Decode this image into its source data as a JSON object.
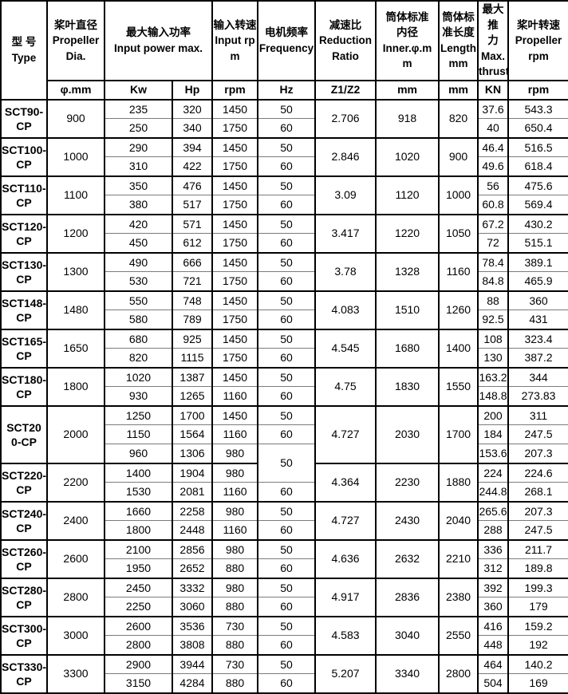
{
  "table": {
    "header": {
      "type": "型 号\nType",
      "groups": [
        {
          "label": "桨叶直径\nPropeller\nDia.",
          "units": [
            "φ.mm"
          ]
        },
        {
          "label": "最大输入功率\nInput power max.",
          "units": [
            "Kw",
            "Hp"
          ]
        },
        {
          "label": "输入转速\nInput rp\nm",
          "units": [
            "rpm"
          ]
        },
        {
          "label": "电机频率\nFrequency",
          "units": [
            "Hz"
          ]
        },
        {
          "label": "减速比\nReduction\nRatio",
          "units": [
            "Z1/Z2"
          ]
        },
        {
          "label": "筒体标准\n内径\nInner.φ.m\nm",
          "units": [
            "mm"
          ]
        },
        {
          "label": "筒体标\n准长度\nLength\nmm",
          "units": [
            "mm"
          ]
        },
        {
          "label": "最大推\n力\nMax.\nthrust",
          "units": [
            "KN"
          ]
        },
        {
          "label": "桨叶转速\nPropeller\nrpm",
          "units": [
            "rpm"
          ]
        }
      ]
    },
    "models": [
      {
        "type": "SCT90-\nCP",
        "dia": "900",
        "ratio": "2.706",
        "inner": "918",
        "length": "820",
        "rows": [
          {
            "kw": "235",
            "hp": "320",
            "rpm": "1450",
            "hz": "50",
            "thrust": "37.6",
            "prop_rpm": "543.3"
          },
          {
            "kw": "250",
            "hp": "340",
            "rpm": "1750",
            "hz": "60",
            "thrust": "40",
            "prop_rpm": "650.4"
          }
        ]
      },
      {
        "type": "SCT100-\nCP",
        "dia": "1000",
        "ratio": "2.846",
        "inner": "1020",
        "length": "900",
        "rows": [
          {
            "kw": "290",
            "hp": "394",
            "rpm": "1450",
            "hz": "50",
            "thrust": "46.4",
            "prop_rpm": "516.5"
          },
          {
            "kw": "310",
            "hp": "422",
            "rpm": "1750",
            "hz": "60",
            "thrust": "49.6",
            "prop_rpm": "618.4"
          }
        ]
      },
      {
        "type": "SCT110-\nCP",
        "dia": "1100",
        "ratio": "3.09",
        "inner": "1120",
        "length": "1000",
        "rows": [
          {
            "kw": "350",
            "hp": "476",
            "rpm": "1450",
            "hz": "50",
            "thrust": "56",
            "prop_rpm": "475.6"
          },
          {
            "kw": "380",
            "hp": "517",
            "rpm": "1750",
            "hz": "60",
            "thrust": "60.8",
            "prop_rpm": "569.4"
          }
        ]
      },
      {
        "type": "SCT120-\nCP",
        "dia": "1200",
        "ratio": "3.417",
        "inner": "1220",
        "length": "1050",
        "rows": [
          {
            "kw": "420",
            "hp": "571",
            "rpm": "1450",
            "hz": "50",
            "thrust": "67.2",
            "prop_rpm": "430.2"
          },
          {
            "kw": "450",
            "hp": "612",
            "rpm": "1750",
            "hz": "60",
            "thrust": "72",
            "prop_rpm": "515.1"
          }
        ]
      },
      {
        "type": "SCT130-\nCP",
        "dia": "1300",
        "ratio": "3.78",
        "inner": "1328",
        "length": "1160",
        "rows": [
          {
            "kw": "490",
            "hp": "666",
            "rpm": "1450",
            "hz": "50",
            "thrust": "78.4",
            "prop_rpm": "389.1"
          },
          {
            "kw": "530",
            "hp": "721",
            "rpm": "1750",
            "hz": "60",
            "thrust": "84.8",
            "prop_rpm": "465.9"
          }
        ]
      },
      {
        "type": "SCT148-\nCP",
        "dia": "1480",
        "ratio": "4.083",
        "inner": "1510",
        "length": "1260",
        "rows": [
          {
            "kw": "550",
            "hp": "748",
            "rpm": "1450",
            "hz": "50",
            "thrust": "88",
            "prop_rpm": "360"
          },
          {
            "kw": "580",
            "hp": "789",
            "rpm": "1750",
            "hz": "60",
            "thrust": "92.5",
            "prop_rpm": "431"
          }
        ]
      },
      {
        "type": "SCT165-\nCP",
        "dia": "1650",
        "ratio": "4.545",
        "inner": "1680",
        "length": "1400",
        "rows": [
          {
            "kw": "680",
            "hp": "925",
            "rpm": "1450",
            "hz": "50",
            "thrust": "108",
            "prop_rpm": "323.4"
          },
          {
            "kw": "820",
            "hp": "1115",
            "rpm": "1750",
            "hz": "60",
            "thrust": "130",
            "prop_rpm": "387.2"
          }
        ]
      },
      {
        "type": "SCT180-\nCP",
        "dia": "1800",
        "ratio": "4.75",
        "inner": "1830",
        "length": "1550",
        "rows": [
          {
            "kw": "1020",
            "hp": "1387",
            "rpm": "1450",
            "hz": "50",
            "thrust": "163.2",
            "prop_rpm": "344"
          },
          {
            "kw": "930",
            "hp": "1265",
            "rpm": "1160",
            "hz": "60",
            "thrust": "148.8",
            "prop_rpm": "273.83"
          }
        ]
      },
      {
        "type": "SCT20\n0-CP",
        "dia": "2000",
        "ratio": "4.727",
        "inner": "2030",
        "length": "1700",
        "rows": [
          {
            "kw": "1250",
            "hp": "1700",
            "rpm": "1450",
            "hz": "50",
            "thrust": "200",
            "prop_rpm": "311"
          },
          {
            "kw": "1150",
            "hp": "1564",
            "rpm": "1160",
            "hz": "60",
            "thrust": "184",
            "prop_rpm": "247.5"
          },
          {
            "kw": "960",
            "hp": "1306",
            "rpm": "980",
            "hz": "50",
            "hz_rowspan": 2,
            "thrust": "153.6",
            "prop_rpm": "207.3"
          }
        ]
      },
      {
        "type": "SCT220-\nCP",
        "dia": "2200",
        "ratio": "4.364",
        "inner": "2230",
        "length": "1880",
        "rows": [
          {
            "kw": "1400",
            "hp": "1904",
            "rpm": "980",
            "hz": null,
            "hz_merged_above": true,
            "thrust": "224",
            "prop_rpm": "224.6"
          },
          {
            "kw": "1530",
            "hp": "2081",
            "rpm": "1160",
            "hz": "60",
            "thrust": "244.8",
            "prop_rpm": "268.1"
          }
        ]
      },
      {
        "type": "SCT240-\nCP",
        "dia": "2400",
        "ratio": "4.727",
        "inner": "2430",
        "length": "2040",
        "rows": [
          {
            "kw": "1660",
            "hp": "2258",
            "rpm": "980",
            "hz": "50",
            "thrust": "265.6",
            "prop_rpm": "207.3"
          },
          {
            "kw": "1800",
            "hp": "2448",
            "rpm": "1160",
            "hz": "60",
            "thrust": "288",
            "prop_rpm": "247.5"
          }
        ]
      },
      {
        "type": "SCT260-\nCP",
        "dia": "2600",
        "ratio": "4.636",
        "inner": "2632",
        "length": "2210",
        "rows": [
          {
            "kw": "2100",
            "hp": "2856",
            "rpm": "980",
            "hz": "50",
            "thrust": "336",
            "prop_rpm": "211.7"
          },
          {
            "kw": "1950",
            "hp": "2652",
            "rpm": "880",
            "hz": "60",
            "thrust": "312",
            "prop_rpm": "189.8"
          }
        ]
      },
      {
        "type": "SCT280-\nCP",
        "dia": "2800",
        "ratio": "4.917",
        "inner": "2836",
        "length": "2380",
        "rows": [
          {
            "kw": "2450",
            "hp": "3332",
            "rpm": "980",
            "hz": "50",
            "thrust": "392",
            "prop_rpm": "199.3"
          },
          {
            "kw": "2250",
            "hp": "3060",
            "rpm": "880",
            "hz": "60",
            "thrust": "360",
            "prop_rpm": "179"
          }
        ]
      },
      {
        "type": "SCT300-\nCP",
        "dia": "3000",
        "ratio": "4.583",
        "inner": "3040",
        "length": "2550",
        "rows": [
          {
            "kw": "2600",
            "hp": "3536",
            "rpm": "730",
            "hz": "50",
            "thrust": "416",
            "prop_rpm": "159.2"
          },
          {
            "kw": "2800",
            "hp": "3808",
            "rpm": "880",
            "hz": "60",
            "thrust": "448",
            "prop_rpm": "192"
          }
        ]
      },
      {
        "type": "SCT330-\nCP",
        "dia": "3300",
        "ratio": "5.207",
        "inner": "3340",
        "length": "2800",
        "rows": [
          {
            "kw": "2900",
            "hp": "3944",
            "rpm": "730",
            "hz": "50",
            "thrust": "464",
            "prop_rpm": "140.2"
          },
          {
            "kw": "3150",
            "hp": "4284",
            "rpm": "880",
            "hz": "60",
            "thrust": "504",
            "prop_rpm": "169"
          }
        ]
      }
    ]
  }
}
